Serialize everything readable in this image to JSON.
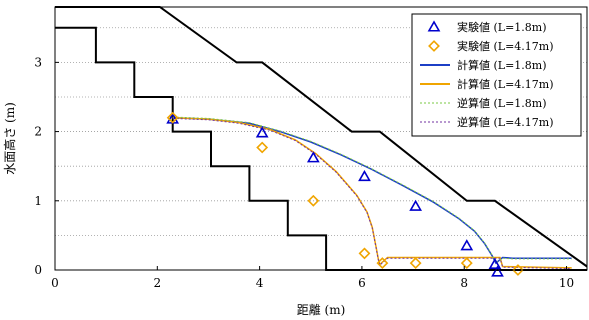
{
  "chart_data": {
    "type": "line",
    "xlabel": "距離 (m)",
    "ylabel": "水面高さ (m)",
    "xlim": [
      0,
      10.4
    ],
    "ylim": [
      0,
      3.8
    ],
    "x_ticks": [
      "0",
      "2",
      "4",
      "6",
      "8",
      "10"
    ],
    "x_tick_values": [
      0,
      2,
      4,
      6,
      8,
      10
    ],
    "y_ticks": [
      "0",
      "1",
      "2",
      "3"
    ],
    "y_tick_values": [
      0,
      1,
      2,
      3
    ],
    "grid": "horizontal dotted",
    "legend_position": "top-right",
    "boundaries": [
      {
        "color": "#000000",
        "points": [
          [
            0,
            3.5
          ],
          [
            0.8,
            3.5
          ],
          [
            0.8,
            3.0
          ],
          [
            1.55,
            3.0
          ],
          [
            1.55,
            2.5
          ],
          [
            2.3,
            2.5
          ],
          [
            2.3,
            2.0
          ],
          [
            3.05,
            2.0
          ],
          [
            3.05,
            1.5
          ],
          [
            3.8,
            1.5
          ],
          [
            3.8,
            1.0
          ],
          [
            4.55,
            1.0
          ],
          [
            4.55,
            0.5
          ],
          [
            5.3,
            0.5
          ],
          [
            5.3,
            0.0
          ],
          [
            10.4,
            0.0
          ]
        ]
      },
      {
        "color": "#000000",
        "points": [
          [
            0,
            3.8
          ],
          [
            2.05,
            3.8
          ],
          [
            3.55,
            3.0
          ],
          [
            4.05,
            3.0
          ],
          [
            5.8,
            2.0
          ],
          [
            6.35,
            2.0
          ],
          [
            8.05,
            1.0
          ],
          [
            8.6,
            1.0
          ],
          [
            10.4,
            0.05
          ]
        ]
      }
    ],
    "series": [
      {
        "name": "実験値 (L=1.8m)",
        "kind": "marker",
        "marker": "triangle",
        "color": "#0000cc",
        "points": [
          [
            2.3,
            2.18
          ],
          [
            4.05,
            1.98
          ],
          [
            5.05,
            1.62
          ],
          [
            6.05,
            1.35
          ],
          [
            7.05,
            0.92
          ],
          [
            8.05,
            0.35
          ],
          [
            8.6,
            0.08
          ],
          [
            8.65,
            -0.03
          ]
        ]
      },
      {
        "name": "実験値 (L=4.17m)",
        "kind": "marker",
        "marker": "diamond",
        "color": "#f0a500",
        "points": [
          [
            2.3,
            2.2
          ],
          [
            4.05,
            1.77
          ],
          [
            5.05,
            1.0
          ],
          [
            6.05,
            0.24
          ],
          [
            6.4,
            0.1
          ],
          [
            7.05,
            0.1
          ],
          [
            8.05,
            0.1
          ],
          [
            9.05,
            0.0
          ]
        ]
      },
      {
        "name": "計算値 (L=1.8m)",
        "kind": "line",
        "color": "#1c3fc6",
        "points": [
          [
            2.3,
            2.2
          ],
          [
            3.0,
            2.18
          ],
          [
            3.8,
            2.12
          ],
          [
            4.4,
            2.0
          ],
          [
            5.0,
            1.85
          ],
          [
            5.6,
            1.66
          ],
          [
            6.2,
            1.45
          ],
          [
            6.8,
            1.22
          ],
          [
            7.4,
            0.98
          ],
          [
            7.9,
            0.74
          ],
          [
            8.2,
            0.56
          ],
          [
            8.4,
            0.38
          ],
          [
            8.55,
            0.2
          ],
          [
            8.62,
            0.1
          ],
          [
            8.75,
            0.18
          ],
          [
            8.95,
            0.17
          ],
          [
            10.1,
            0.17
          ]
        ]
      },
      {
        "name": "計算値 (L=4.17m)",
        "kind": "line",
        "color": "#f0a500",
        "points": [
          [
            2.3,
            2.2
          ],
          [
            3.0,
            2.18
          ],
          [
            3.6,
            2.13
          ],
          [
            4.2,
            2.03
          ],
          [
            4.7,
            1.88
          ],
          [
            5.1,
            1.68
          ],
          [
            5.5,
            1.42
          ],
          [
            5.9,
            1.08
          ],
          [
            6.1,
            0.84
          ],
          [
            6.2,
            0.62
          ],
          [
            6.27,
            0.36
          ],
          [
            6.32,
            0.16
          ],
          [
            6.35,
            0.08
          ],
          [
            6.5,
            0.18
          ],
          [
            8.7,
            0.18
          ],
          [
            8.75,
            0.05
          ],
          [
            10.1,
            0.03
          ]
        ]
      },
      {
        "name": "逆算値 (L=1.8m)",
        "kind": "line",
        "dashed": true,
        "color": "#7ac943",
        "points": [
          [
            2.3,
            2.21
          ],
          [
            3.0,
            2.19
          ],
          [
            3.8,
            2.13
          ],
          [
            4.4,
            2.01
          ],
          [
            5.0,
            1.86
          ],
          [
            5.6,
            1.67
          ],
          [
            6.2,
            1.46
          ],
          [
            6.8,
            1.23
          ],
          [
            7.4,
            0.99
          ],
          [
            7.9,
            0.75
          ],
          [
            8.2,
            0.57
          ],
          [
            8.4,
            0.39
          ],
          [
            8.55,
            0.21
          ],
          [
            8.62,
            0.1
          ],
          [
            8.75,
            0.17
          ],
          [
            8.95,
            0.16
          ],
          [
            10.1,
            0.16
          ]
        ]
      },
      {
        "name": "逆算値 (L=4.17m)",
        "kind": "line",
        "dashed": true,
        "color": "#7030a0",
        "points": [
          [
            2.3,
            2.19
          ],
          [
            3.0,
            2.17
          ],
          [
            3.6,
            2.12
          ],
          [
            4.2,
            2.02
          ],
          [
            4.7,
            1.87
          ],
          [
            5.1,
            1.67
          ],
          [
            5.5,
            1.41
          ],
          [
            5.9,
            1.07
          ],
          [
            6.1,
            0.83
          ],
          [
            6.2,
            0.61
          ],
          [
            6.27,
            0.35
          ],
          [
            6.32,
            0.15
          ],
          [
            6.35,
            0.07
          ],
          [
            6.5,
            0.17
          ],
          [
            8.7,
            0.17
          ],
          [
            8.75,
            0.04
          ],
          [
            10.1,
            0.02
          ]
        ]
      }
    ]
  }
}
